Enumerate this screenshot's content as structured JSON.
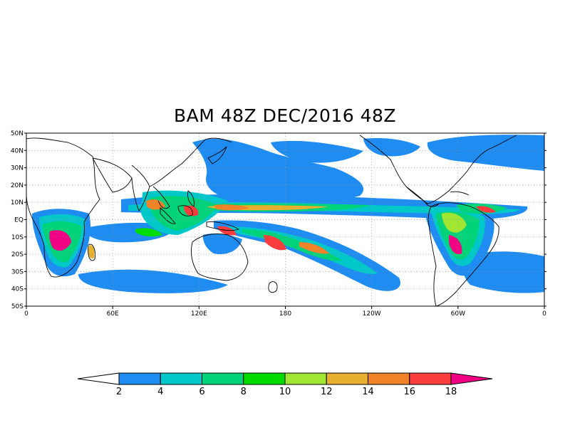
{
  "title": "BAM 48Z DEC/2016 48Z",
  "map": {
    "lat_labels": [
      "50N",
      "40N",
      "30N",
      "20N",
      "10N",
      "EQ",
      "10S",
      "20S",
      "30S",
      "40S",
      "50S"
    ],
    "lon_labels": [
      "0",
      "60E",
      "120E",
      "180",
      "120W",
      "60W",
      "0"
    ],
    "lat_range": [
      -50,
      50
    ],
    "lon_range": [
      0,
      360
    ],
    "grid": "dotted"
  },
  "colorbar": {
    "levels": [
      "2",
      "4",
      "6",
      "8",
      "10",
      "12",
      "14",
      "16",
      "18"
    ],
    "colors": [
      "#ffffff",
      "#1e8cf0",
      "#00c8c8",
      "#00d27a",
      "#00dc00",
      "#a0e632",
      "#e6af2d",
      "#f08228",
      "#fa3c3c",
      "#f00082"
    ]
  }
}
